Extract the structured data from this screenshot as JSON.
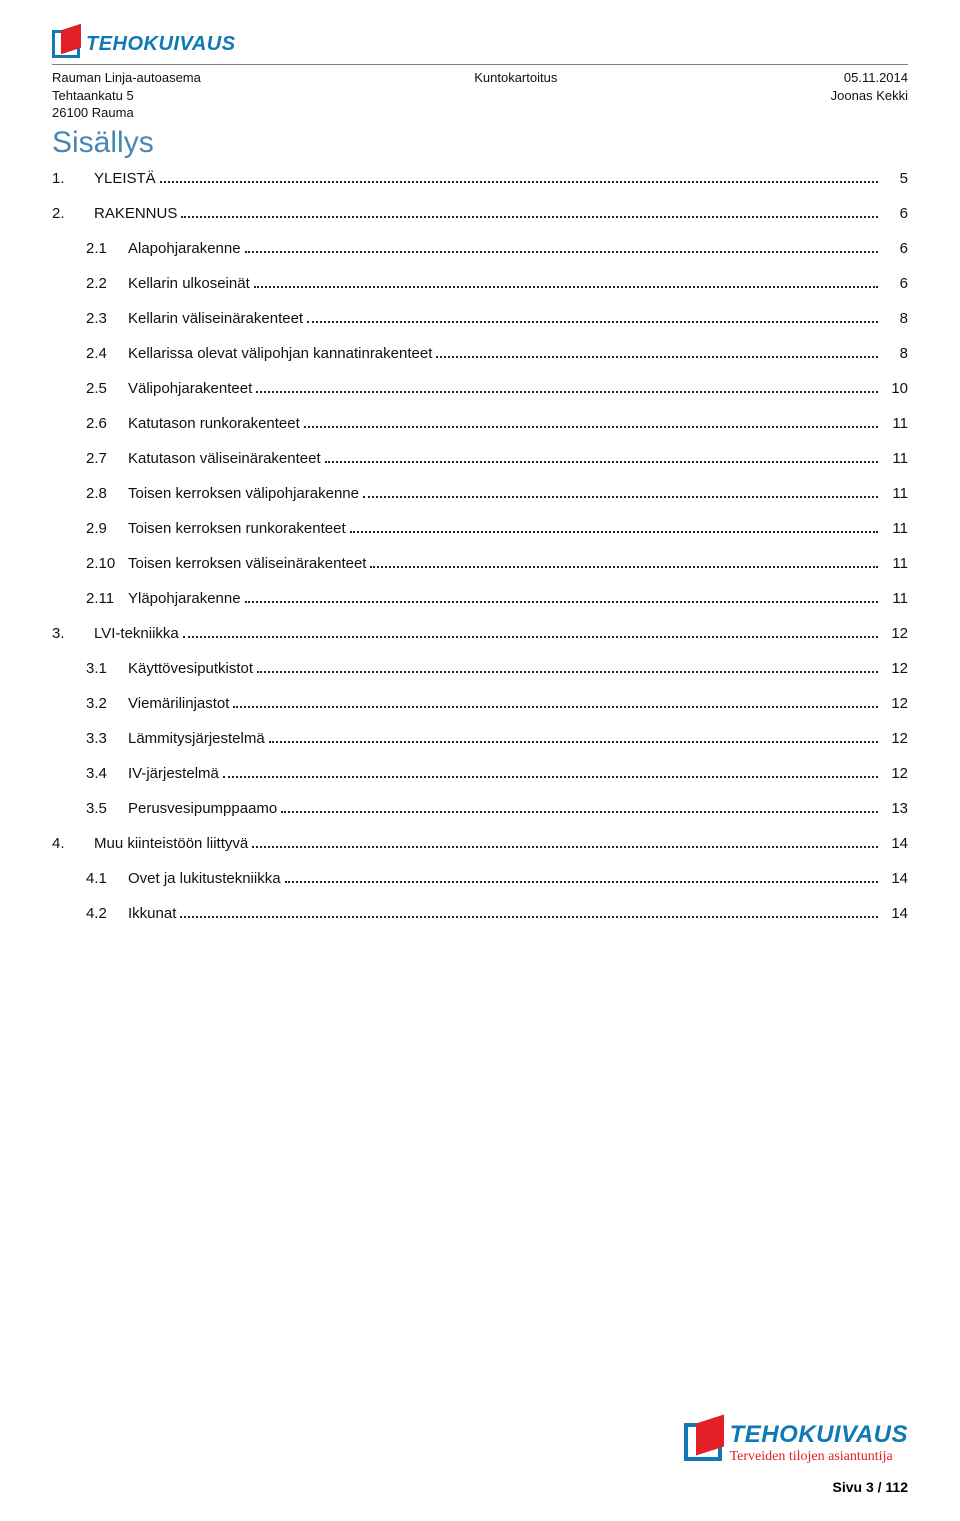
{
  "logo_text": "TEHOKUIVAUS",
  "header": {
    "left_line1": "Rauman Linja-autoasema",
    "left_line2": "Tehtaankatu 5",
    "left_line3": "26100 Rauma",
    "center": "Kuntokartoitus",
    "right_line1": "05.11.2014",
    "right_line2": "Joonas Kekki"
  },
  "title": "Sisällys",
  "toc": [
    {
      "num": "1.",
      "label": "YLEISTÄ",
      "page": "5",
      "level": 0
    },
    {
      "num": "2.",
      "label": "RAKENNUS",
      "page": "6",
      "level": 0
    },
    {
      "num": "2.1",
      "label": "Alapohjarakenne",
      "page": "6",
      "level": 1
    },
    {
      "num": "2.2",
      "label": "Kellarin ulkoseinät",
      "page": "6",
      "level": 1
    },
    {
      "num": "2.3",
      "label": "Kellarin väliseinärakenteet",
      "page": "8",
      "level": 1
    },
    {
      "num": "2.4",
      "label": "Kellarissa olevat välipohjan kannatinrakenteet",
      "page": "8",
      "level": 1
    },
    {
      "num": "2.5",
      "label": "Välipohjarakenteet",
      "page": "10",
      "level": 1
    },
    {
      "num": "2.6",
      "label": "Katutason runkorakenteet",
      "page": "11",
      "level": 1
    },
    {
      "num": "2.7",
      "label": "Katutason väliseinärakenteet",
      "page": "11",
      "level": 1
    },
    {
      "num": "2.8",
      "label": "Toisen kerroksen välipohjarakenne",
      "page": "11",
      "level": 1
    },
    {
      "num": "2.9",
      "label": "Toisen kerroksen runkorakenteet",
      "page": "11",
      "level": 1
    },
    {
      "num": "2.10",
      "label": "Toisen kerroksen väliseinärakenteet",
      "page": "11",
      "level": 1
    },
    {
      "num": "2.11",
      "label": "Yläpohjarakenne",
      "page": "11",
      "level": 1
    },
    {
      "num": "3.",
      "label": "LVI-tekniikka",
      "page": "12",
      "level": 0
    },
    {
      "num": "3.1",
      "label": "Käyttövesiputkistot",
      "page": "12",
      "level": 1
    },
    {
      "num": "3.2",
      "label": "Viemärilinjastot",
      "page": "12",
      "level": 1
    },
    {
      "num": "3.3",
      "label": "Lämmitysjärjestelmä",
      "page": "12",
      "level": 1
    },
    {
      "num": "3.4",
      "label": "IV-järjestelmä",
      "page": "12",
      "level": 1
    },
    {
      "num": "3.5",
      "label": "Perusvesipumppaamo",
      "page": "13",
      "level": 1
    },
    {
      "num": "4.",
      "label": "Muu kiinteistöön liittyvä",
      "page": "14",
      "level": 0
    },
    {
      "num": "4.1",
      "label": "Ovet ja lukitustekniikka",
      "page": "14",
      "level": 1
    },
    {
      "num": "4.2",
      "label": "Ikkunat",
      "page": "14",
      "level": 1
    }
  ],
  "footer": {
    "logo_main": "TEHOKUIVAUS",
    "logo_sub": "Terveiden tilojen asiantuntija",
    "page_label": "Sivu 3 / 112"
  },
  "colors": {
    "title": "#4a86b4",
    "brand_blue": "#1079b5",
    "brand_red": "#e22026",
    "rule": "#7f7f7f",
    "text": "#111111"
  }
}
